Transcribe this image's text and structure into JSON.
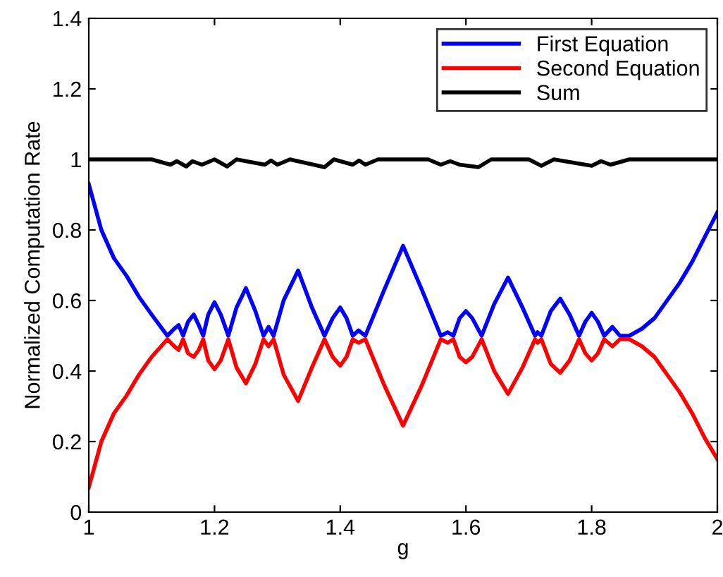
{
  "chart_data": {
    "type": "line",
    "xlabel": "g",
    "ylabel": "Normalized Computation Rate",
    "xlim": [
      1,
      2
    ],
    "ylim": [
      0,
      1.4
    ],
    "xticks": [
      1,
      1.2,
      1.4,
      1.6,
      1.8,
      2
    ],
    "yticks": [
      0,
      0.2,
      0.4,
      0.6,
      0.8,
      1,
      1.2,
      1.4
    ],
    "grid": false,
    "legend": "top right",
    "line_style": "solid",
    "marker": "none",
    "series": [
      {
        "name": "First Equation",
        "color": "#0000ff",
        "x": [
          1,
          1.02,
          1.04,
          1.06,
          1.08,
          1.1,
          1.125,
          1.136,
          1.143,
          1.15,
          1.158,
          1.167,
          1.175,
          1.182,
          1.19,
          1.2,
          1.21,
          1.222,
          1.235,
          1.25,
          1.265,
          1.278,
          1.286,
          1.294,
          1.31,
          1.333,
          1.355,
          1.375,
          1.388,
          1.4,
          1.41,
          1.42,
          1.429,
          1.44,
          1.47,
          1.5,
          1.53,
          1.56,
          1.571,
          1.58,
          1.59,
          1.6,
          1.61,
          1.625,
          1.645,
          1.667,
          1.69,
          1.71,
          1.714,
          1.72,
          1.735,
          1.75,
          1.765,
          1.78,
          1.79,
          1.8,
          1.81,
          1.82,
          1.833,
          1.845,
          1.86,
          1.88,
          1.9,
          1.92,
          1.94,
          1.96,
          1.98,
          2
        ],
        "values": [
          0.93,
          0.8,
          0.72,
          0.67,
          0.61,
          0.56,
          0.5,
          0.52,
          0.53,
          0.5,
          0.54,
          0.56,
          0.53,
          0.5,
          0.56,
          0.595,
          0.56,
          0.5,
          0.58,
          0.635,
          0.57,
          0.5,
          0.525,
          0.5,
          0.6,
          0.685,
          0.58,
          0.5,
          0.55,
          0.58,
          0.55,
          0.5,
          0.515,
          0.5,
          0.63,
          0.755,
          0.63,
          0.5,
          0.51,
          0.5,
          0.55,
          0.57,
          0.55,
          0.5,
          0.59,
          0.665,
          0.58,
          0.5,
          0.51,
          0.5,
          0.57,
          0.605,
          0.56,
          0.5,
          0.54,
          0.565,
          0.54,
          0.5,
          0.525,
          0.5,
          0.5,
          0.52,
          0.55,
          0.6,
          0.65,
          0.71,
          0.78,
          0.85
        ]
      },
      {
        "name": "Second Equation",
        "color": "#ff0000",
        "x": [
          1,
          1.02,
          1.04,
          1.06,
          1.08,
          1.1,
          1.125,
          1.136,
          1.143,
          1.15,
          1.158,
          1.167,
          1.175,
          1.182,
          1.19,
          1.2,
          1.21,
          1.222,
          1.235,
          1.25,
          1.265,
          1.278,
          1.286,
          1.294,
          1.31,
          1.333,
          1.355,
          1.375,
          1.388,
          1.4,
          1.41,
          1.42,
          1.429,
          1.44,
          1.47,
          1.5,
          1.53,
          1.56,
          1.571,
          1.58,
          1.59,
          1.6,
          1.61,
          1.625,
          1.645,
          1.667,
          1.69,
          1.71,
          1.714,
          1.72,
          1.735,
          1.75,
          1.765,
          1.78,
          1.79,
          1.8,
          1.81,
          1.82,
          1.833,
          1.845,
          1.86,
          1.88,
          1.9,
          1.92,
          1.94,
          1.96,
          1.98,
          2
        ],
        "values": [
          0.07,
          0.2,
          0.28,
          0.33,
          0.39,
          0.44,
          0.49,
          0.47,
          0.46,
          0.49,
          0.45,
          0.44,
          0.46,
          0.49,
          0.43,
          0.405,
          0.43,
          0.49,
          0.41,
          0.365,
          0.42,
          0.49,
          0.47,
          0.49,
          0.39,
          0.315,
          0.41,
          0.49,
          0.44,
          0.415,
          0.44,
          0.49,
          0.48,
          0.49,
          0.36,
          0.245,
          0.36,
          0.49,
          0.48,
          0.49,
          0.44,
          0.425,
          0.44,
          0.49,
          0.4,
          0.335,
          0.41,
          0.49,
          0.48,
          0.49,
          0.42,
          0.395,
          0.43,
          0.49,
          0.45,
          0.43,
          0.45,
          0.49,
          0.47,
          0.49,
          0.49,
          0.47,
          0.44,
          0.39,
          0.34,
          0.28,
          0.21,
          0.15
        ]
      },
      {
        "name": "Sum",
        "color": "#000000",
        "x": [
          1,
          1.1,
          1.13,
          1.14,
          1.155,
          1.165,
          1.18,
          1.2,
          1.22,
          1.235,
          1.28,
          1.29,
          1.3,
          1.32,
          1.375,
          1.39,
          1.42,
          1.43,
          1.44,
          1.46,
          1.54,
          1.56,
          1.575,
          1.59,
          1.62,
          1.64,
          1.7,
          1.72,
          1.74,
          1.8,
          1.815,
          1.83,
          1.86,
          2
        ],
        "values": [
          1,
          1,
          0.985,
          0.995,
          0.98,
          0.995,
          0.985,
          1,
          0.98,
          1,
          0.985,
          0.997,
          0.985,
          1,
          0.978,
          1,
          0.985,
          0.997,
          0.985,
          1,
          1,
          0.985,
          0.995,
          0.985,
          0.978,
          1,
          1,
          0.982,
          1,
          0.982,
          0.995,
          0.985,
          1,
          1
        ]
      }
    ]
  }
}
